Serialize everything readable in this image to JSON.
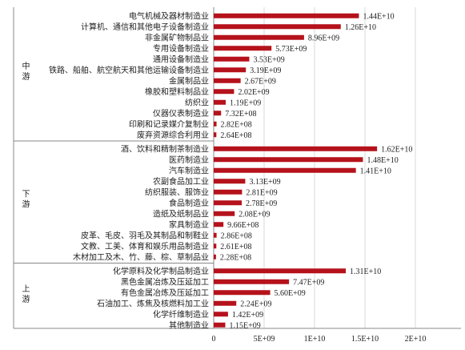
{
  "chart_data": {
    "type": "bar",
    "orientation": "horizontal",
    "bar_color": "#b5121b",
    "x_ticks": [
      "0",
      "5E+09",
      "1E+10",
      "1.5E+10",
      "2E+10"
    ],
    "xlim": [
      0,
      20000000000
    ],
    "grid": "vertical",
    "groups": [
      {
        "name": "中游",
        "categories": [
          "电气机械及器材制造业",
          "计算机、通信和其他电子设备制造业",
          "非金属矿物制品业",
          "专用设备制造业",
          "通用设备制造业",
          "铁路、船舶、航空航天和其他运输设备制造业",
          "金属制品业",
          "橡胶和塑料制品业",
          "纺织业",
          "仪器仪表制造业",
          "印刷和记录媒介复制业",
          "废弃资源综合利用业"
        ],
        "values": [
          14400000000,
          12600000000,
          8960000000,
          5730000000,
          3530000000,
          3190000000,
          2670000000,
          2020000000,
          1190000000,
          732000000,
          282000000,
          264000000
        ],
        "labels": [
          "1.44E+10",
          "1.26E+10",
          "8.96E+09",
          "5.73E+09",
          "3.53E+09",
          "3.19E+09",
          "2.67E+09",
          "2.02E+09",
          "1.19E+09",
          "7.32E+08",
          "2.82E+08",
          "2.64E+08"
        ]
      },
      {
        "name": "下游",
        "categories": [
          "酒、饮料和精制茶制造业",
          "医药制造业",
          "汽车制造业",
          "农副食品加工业",
          "纺织服装、服饰业",
          "食品制造业",
          "造纸及纸制品业",
          "家具制造业",
          "皮革、毛皮、羽毛及其制品和制鞋业",
          "文教、工美、体育和娱乐用品制造业",
          "木材加工及木、竹、藤、棕、草制品业"
        ],
        "values": [
          16200000000,
          14800000000,
          14100000000,
          3130000000,
          2810000000,
          2780000000,
          2080000000,
          966000000,
          286000000,
          261000000,
          228000000
        ],
        "labels": [
          "1.62E+10",
          "1.48E+10",
          "1.41E+10",
          "3.13E+09",
          "2.81E+09",
          "2.78E+09",
          "2.08E+09",
          "9.66E+08",
          "2.86E+08",
          "2.61E+08",
          "2.28E+08"
        ]
      },
      {
        "name": "上游",
        "categories": [
          "化学原料及化学制品制造业",
          "黑色金属冶炼及压延加工",
          "有色金属冶炼及压延加工",
          "石油加工、炼焦及核燃料加工业",
          "化学纤维制造业",
          "其他制造业"
        ],
        "values": [
          13100000000,
          7470000000,
          5600000000,
          2240000000,
          1420000000,
          1150000000
        ],
        "labels": [
          "1.31E+10",
          "7.47E+09",
          "5.60E+09",
          "2.24E+09",
          "1.42E+09",
          "1.15E+09"
        ]
      }
    ]
  }
}
